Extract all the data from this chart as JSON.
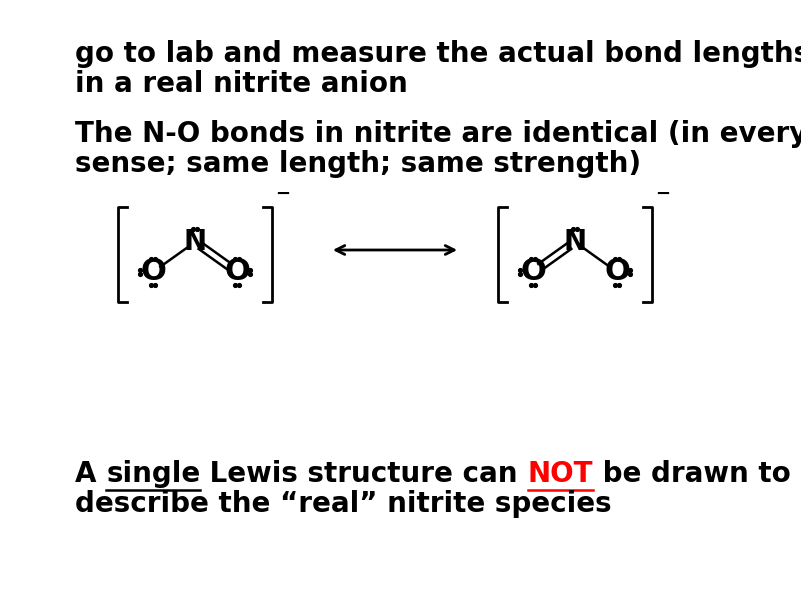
{
  "bg_color": "#ffffff",
  "text1_line1": "go to lab and measure the actual bond lengths",
  "text1_line2": "in a real nitrite anion",
  "text2_line1": "The N-O bonds in nitrite are identical (in every",
  "text2_line2": "sense; same length; same strength)",
  "text3_line2": "describe the “real” nitrite species",
  "font_size": 20,
  "text_color": "#000000",
  "highlight_color": "#ff0000",
  "fig_width": 8.01,
  "fig_height": 6.0,
  "dpi": 100
}
